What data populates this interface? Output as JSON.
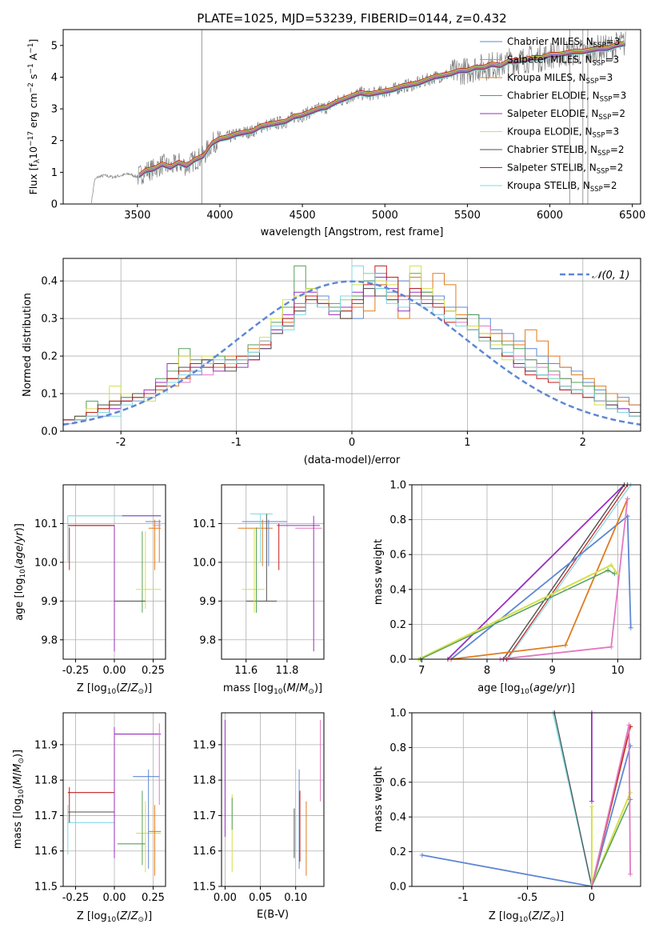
{
  "figure": {
    "title": "PLATE=1025, MJD=53239, FIBERID=0144, z=0.432",
    "colors": {
      "chabrier_miles": "#5f87d4",
      "salpeter_miles": "#e377c2",
      "kroupa_miles": "#e07b1e",
      "chabrier_elodie": "#55a05a",
      "salpeter_elodie": "#9b2fbf",
      "kroupa_elodie": "#d4e04a",
      "chabrier_stelib": "#505050",
      "salpeter_stelib": "#c01f1f",
      "kroupa_stelib": "#7fd8e0",
      "data": "#808080",
      "gaussian": "#5f87d4",
      "grid": "#b0b0b0"
    }
  },
  "chart_data": [
    {
      "type": "line",
      "panel": "spectrum",
      "xlabel": "wavelength [Angstrom, rest frame]",
      "ylabel": "Flux [f_λ 10^-17 erg cm^-2 s^-1 A^-1]",
      "xlim": [
        3050,
        6550
      ],
      "ylim": [
        0,
        5.5
      ],
      "xticks": [
        3500,
        4000,
        4500,
        5000,
        5500,
        6000,
        6500
      ],
      "yticks": [
        0,
        1,
        2,
        3,
        4,
        5
      ],
      "grid": false,
      "legend_position": "upper-right",
      "data_spectrum": {
        "name": "",
        "x": [
          3220,
          3240,
          3260,
          3300,
          3350,
          3400,
          3450,
          3500,
          3550,
          3600,
          3650,
          3700,
          3750,
          3800,
          3850,
          3900,
          3950,
          4000,
          4050,
          4100,
          4150,
          4200,
          4250,
          4300,
          4350,
          4400,
          4450,
          4500,
          4550,
          4600,
          4650,
          4700,
          4750,
          4800,
          4850,
          4900,
          4950,
          5000,
          5050,
          5100,
          5150,
          5200,
          5250,
          5300,
          5350,
          5400,
          5450,
          5500,
          5550,
          5600,
          5650,
          5700,
          5750,
          5800,
          5850,
          5900,
          5950,
          6000,
          6050,
          6100,
          6150,
          6200,
          6250,
          6300,
          6350,
          6400,
          6450
        ],
        "y": [
          0,
          0.75,
          0.85,
          0.9,
          0.85,
          0.9,
          0.95,
          0.85,
          1.05,
          1.1,
          1.25,
          1.15,
          1.3,
          1.2,
          1.4,
          1.5,
          1.9,
          2.05,
          2.1,
          2.2,
          2.25,
          2.3,
          2.45,
          2.5,
          2.55,
          2.6,
          2.75,
          2.8,
          2.9,
          3.0,
          3.05,
          3.2,
          3.3,
          3.4,
          3.5,
          3.45,
          3.5,
          3.55,
          3.6,
          3.7,
          3.75,
          3.8,
          3.9,
          4.0,
          4.05,
          4.1,
          4.2,
          4.2,
          4.3,
          4.3,
          4.4,
          4.35,
          4.5,
          4.5,
          4.55,
          4.6,
          4.6,
          4.7,
          4.7,
          4.75,
          4.8,
          4.8,
          4.85,
          4.9,
          4.9,
          5.0,
          5.05
        ]
      },
      "series": [
        {
          "name": "Chabrier MILES, N_SSP=3",
          "legend_main": "Chabrier MILES, N",
          "legend_sub": "SSP",
          "legend_tail": "=3",
          "color_key": "chabrier_miles",
          "offset": 0.0
        },
        {
          "name": "Salpeter MILES, N_SSP=3",
          "legend_main": "Salpeter MILES, N",
          "legend_sub": "SSP",
          "legend_tail": "=3",
          "color_key": "salpeter_miles",
          "offset": 0.02
        },
        {
          "name": "Kroupa MILES, N_SSP=3",
          "legend_main": "Kroupa MILES, N",
          "legend_sub": "SSP",
          "legend_tail": "=3",
          "color_key": "kroupa_miles",
          "offset": -0.02
        },
        {
          "name": "Chabrier ELODIE, N_SSP=3",
          "legend_main": "Chabrier ELODIE, N",
          "legend_sub": "SSP",
          "legend_tail": "=3",
          "color_key": "chabrier_elodie",
          "offset": 0.04
        },
        {
          "name": "Salpeter ELODIE, N_SSP=2",
          "legend_main": "Salpeter ELODIE, N",
          "legend_sub": "SSP",
          "legend_tail": "=2",
          "color_key": "salpeter_elodie",
          "offset": -0.04
        },
        {
          "name": "Kroupa ELODIE, N_SSP=3",
          "legend_main": "Kroupa ELODIE, N",
          "legend_sub": "SSP",
          "legend_tail": "=3",
          "color_key": "kroupa_elodie",
          "offset": 0.06
        },
        {
          "name": "Chabrier STELIB, N_SSP=2",
          "legend_main": "Chabrier STELIB, N",
          "legend_sub": "SSP",
          "legend_tail": "=2",
          "color_key": "chabrier_stelib",
          "offset": -0.06
        },
        {
          "name": "Salpeter STELIB, N_SSP=2",
          "legend_main": "Salpeter STELIB, N",
          "legend_sub": "SSP",
          "legend_tail": "=2",
          "color_key": "salpeter_stelib",
          "offset": 0.08
        },
        {
          "name": "Kroupa STELIB, N_SSP=2",
          "legend_main": "Kroupa STELIB, N",
          "legend_sub": "SSP",
          "legend_tail": "=2",
          "color_key": "kroupa_stelib",
          "offset": -0.08
        }
      ]
    },
    {
      "type": "bar",
      "panel": "residuals",
      "xlabel": "(data-model)/error",
      "ylabel": "Normed distribution",
      "xlim": [
        -2.5,
        2.5
      ],
      "ylim": [
        0,
        0.46
      ],
      "xticks": [
        -2,
        -1,
        0,
        1,
        2
      ],
      "yticks": [
        0.0,
        0.1,
        0.2,
        0.3,
        0.4
      ],
      "grid": true,
      "legend_position": "upper-right",
      "legend": "N(0,1)",
      "bin_width": 0.1,
      "x_start": -2.5,
      "reference_curve": {
        "name": "N(0,1)",
        "mean": 0,
        "sigma": 1
      },
      "series": [
        {
          "color_key": "chabrier_miles",
          "values": [
            0.03,
            0.03,
            0.05,
            0.04,
            0.06,
            0.09,
            0.08,
            0.09,
            0.12,
            0.13,
            0.14,
            0.15,
            0.17,
            0.18,
            0.19,
            0.18,
            0.21,
            0.23,
            0.27,
            0.3,
            0.34,
            0.38,
            0.36,
            0.34,
            0.35,
            0.3,
            0.4,
            0.42,
            0.37,
            0.4,
            0.38,
            0.34,
            0.36,
            0.33,
            0.33,
            0.31,
            0.3,
            0.27,
            0.26,
            0.24,
            0.22,
            0.2,
            0.18,
            0.17,
            0.16,
            0.13,
            0.11,
            0.1,
            0.09,
            0.07
          ]
        },
        {
          "color_key": "salpeter_miles",
          "values": [
            0.02,
            0.03,
            0.04,
            0.05,
            0.06,
            0.08,
            0.09,
            0.1,
            0.11,
            0.13,
            0.13,
            0.16,
            0.15,
            0.17,
            0.19,
            0.2,
            0.2,
            0.24,
            0.26,
            0.29,
            0.32,
            0.34,
            0.35,
            0.33,
            0.3,
            0.36,
            0.38,
            0.39,
            0.36,
            0.35,
            0.34,
            0.35,
            0.31,
            0.32,
            0.29,
            0.27,
            0.28,
            0.26,
            0.23,
            0.2,
            0.19,
            0.17,
            0.15,
            0.14,
            0.11,
            0.1,
            0.1,
            0.07,
            0.05,
            0.04
          ]
        },
        {
          "color_key": "kroupa_miles",
          "values": [
            0.03,
            0.03,
            0.04,
            0.06,
            0.07,
            0.1,
            0.09,
            0.09,
            0.11,
            0.12,
            0.14,
            0.17,
            0.19,
            0.17,
            0.2,
            0.2,
            0.22,
            0.24,
            0.28,
            0.29,
            0.36,
            0.35,
            0.33,
            0.32,
            0.3,
            0.33,
            0.32,
            0.39,
            0.36,
            0.3,
            0.41,
            0.37,
            0.42,
            0.39,
            0.31,
            0.28,
            0.24,
            0.26,
            0.24,
            0.23,
            0.27,
            0.24,
            0.2,
            0.17,
            0.15,
            0.14,
            0.12,
            0.1,
            0.08,
            0.07
          ]
        },
        {
          "color_key": "chabrier_elodie",
          "values": [
            0.03,
            0.04,
            0.08,
            0.06,
            0.08,
            0.09,
            0.09,
            0.1,
            0.14,
            0.16,
            0.22,
            0.19,
            0.18,
            0.2,
            0.19,
            0.2,
            0.23,
            0.23,
            0.29,
            0.33,
            0.44,
            0.38,
            0.33,
            0.33,
            0.32,
            0.36,
            0.4,
            0.38,
            0.35,
            0.33,
            0.42,
            0.37,
            0.35,
            0.32,
            0.3,
            0.31,
            0.26,
            0.24,
            0.23,
            0.22,
            0.19,
            0.18,
            0.16,
            0.14,
            0.13,
            0.12,
            0.1,
            0.08,
            0.06,
            0.05
          ]
        },
        {
          "color_key": "salpeter_elodie",
          "values": [
            0.03,
            0.03,
            0.05,
            0.06,
            0.06,
            0.08,
            0.08,
            0.11,
            0.13,
            0.18,
            0.2,
            0.17,
            0.19,
            0.16,
            0.18,
            0.17,
            0.19,
            0.22,
            0.27,
            0.31,
            0.37,
            0.37,
            0.34,
            0.31,
            0.33,
            0.37,
            0.36,
            0.41,
            0.38,
            0.32,
            0.37,
            0.36,
            0.34,
            0.3,
            0.3,
            0.28,
            0.25,
            0.22,
            0.2,
            0.17,
            0.16,
            0.15,
            0.13,
            0.11,
            0.11,
            0.09,
            0.08,
            0.07,
            0.06,
            0.05
          ]
        },
        {
          "color_key": "kroupa_elodie",
          "values": [
            0.03,
            0.04,
            0.06,
            0.06,
            0.12,
            0.1,
            0.09,
            0.08,
            0.1,
            0.14,
            0.2,
            0.18,
            0.2,
            0.18,
            0.17,
            0.2,
            0.21,
            0.25,
            0.3,
            0.35,
            0.36,
            0.38,
            0.35,
            0.32,
            0.35,
            0.39,
            0.42,
            0.4,
            0.39,
            0.36,
            0.44,
            0.38,
            0.35,
            0.32,
            0.3,
            0.28,
            0.26,
            0.23,
            0.19,
            0.18,
            0.17,
            0.15,
            0.14,
            0.12,
            0.11,
            0.09,
            0.07,
            0.06,
            0.05,
            0.04
          ]
        },
        {
          "color_key": "chabrier_stelib",
          "values": [
            0.03,
            0.04,
            0.05,
            0.07,
            0.07,
            0.08,
            0.1,
            0.1,
            0.12,
            0.14,
            0.17,
            0.16,
            0.19,
            0.18,
            0.16,
            0.19,
            0.2,
            0.22,
            0.26,
            0.28,
            0.32,
            0.35,
            0.33,
            0.32,
            0.3,
            0.34,
            0.38,
            0.36,
            0.35,
            0.33,
            0.36,
            0.36,
            0.33,
            0.3,
            0.3,
            0.27,
            0.25,
            0.22,
            0.2,
            0.18,
            0.16,
            0.15,
            0.13,
            0.12,
            0.11,
            0.1,
            0.08,
            0.07,
            0.05,
            0.05
          ]
        },
        {
          "color_key": "salpeter_stelib",
          "values": [
            0.03,
            0.03,
            0.05,
            0.06,
            0.08,
            0.08,
            0.09,
            0.1,
            0.12,
            0.14,
            0.16,
            0.18,
            0.17,
            0.18,
            0.17,
            0.2,
            0.19,
            0.23,
            0.28,
            0.3,
            0.33,
            0.36,
            0.34,
            0.32,
            0.32,
            0.35,
            0.39,
            0.44,
            0.41,
            0.36,
            0.38,
            0.34,
            0.33,
            0.29,
            0.28,
            0.27,
            0.25,
            0.22,
            0.2,
            0.18,
            0.15,
            0.14,
            0.13,
            0.11,
            0.1,
            0.09,
            0.08,
            0.06,
            0.05,
            0.04
          ]
        },
        {
          "color_key": "kroupa_stelib",
          "values": [
            0.02,
            0.03,
            0.04,
            0.05,
            0.04,
            0.07,
            0.08,
            0.09,
            0.1,
            0.13,
            0.15,
            0.16,
            0.18,
            0.19,
            0.18,
            0.19,
            0.21,
            0.24,
            0.28,
            0.27,
            0.31,
            0.34,
            0.33,
            0.32,
            0.36,
            0.44,
            0.42,
            0.38,
            0.34,
            0.33,
            0.35,
            0.33,
            0.31,
            0.3,
            0.28,
            0.27,
            0.24,
            0.22,
            0.21,
            0.19,
            0.17,
            0.15,
            0.14,
            0.12,
            0.11,
            0.1,
            0.08,
            0.06,
            0.05,
            0.04
          ]
        }
      ]
    },
    {
      "type": "scatter",
      "panel": "age-vs-Z",
      "xlabel": "Z [log10(Z/Z⊙)]",
      "ylabel": "age [log10(age/yr)]",
      "xlim": [
        -0.33,
        0.33
      ],
      "ylim": [
        9.75,
        10.2
      ],
      "xticks": [
        -0.25,
        0.0,
        0.25
      ],
      "yticks": [
        9.8,
        9.9,
        10.0,
        10.1
      ],
      "grid": true
    },
    {
      "type": "scatter",
      "panel": "age-vs-mass",
      "xlabel": "mass [log10(M/M⊙)]",
      "ylabel": "",
      "xlim": [
        11.48,
        11.98
      ],
      "ylim": [
        9.75,
        10.2
      ],
      "xticks": [
        11.6,
        11.8
      ],
      "yticks": [
        9.8,
        9.9,
        10.0,
        10.1
      ],
      "grid": true
    },
    {
      "type": "line",
      "panel": "cumulative-mass-vs-age",
      "xlabel": "age [log10(age/yr)]",
      "ylabel": "mass weight",
      "xlim": [
        6.85,
        10.35
      ],
      "ylim": [
        0,
        1.0
      ],
      "xticks": [
        7,
        8,
        9,
        10
      ],
      "yticks": [
        0.0,
        0.2,
        0.4,
        0.6,
        0.8,
        1.0
      ],
      "grid": true
    },
    {
      "type": "scatter",
      "panel": "mass-vs-Z",
      "xlabel": "Z [log10(Z/Z⊙)]",
      "ylabel": "mass [log10(M/M⊙)]",
      "xlim": [
        -0.33,
        0.33
      ],
      "ylim": [
        11.5,
        11.99
      ],
      "xticks": [
        -0.25,
        0.0,
        0.25
      ],
      "yticks": [
        11.5,
        11.6,
        11.7,
        11.8,
        11.9
      ],
      "grid": true
    },
    {
      "type": "scatter",
      "panel": "mass-vs-EBV",
      "xlabel": "E(B-V)",
      "ylabel": "",
      "xlim": [
        -0.005,
        0.14
      ],
      "ylim": [
        11.5,
        11.99
      ],
      "xticks": [
        0.0,
        0.05,
        0.1
      ],
      "yticks": [
        11.5,
        11.6,
        11.7,
        11.8,
        11.9
      ],
      "grid": true
    },
    {
      "type": "line",
      "panel": "cumulative-mass-vs-Z",
      "xlabel": "Z [log10(Z/Z⊙)]",
      "ylabel": "mass weight",
      "xlim": [
        -1.4,
        0.38
      ],
      "ylim": [
        0,
        1.0
      ],
      "xticks": [
        -1.0,
        -0.5,
        0.0
      ],
      "yticks": [
        0.0,
        0.2,
        0.4,
        0.6,
        0.8,
        1.0
      ],
      "grid": true
    }
  ]
}
